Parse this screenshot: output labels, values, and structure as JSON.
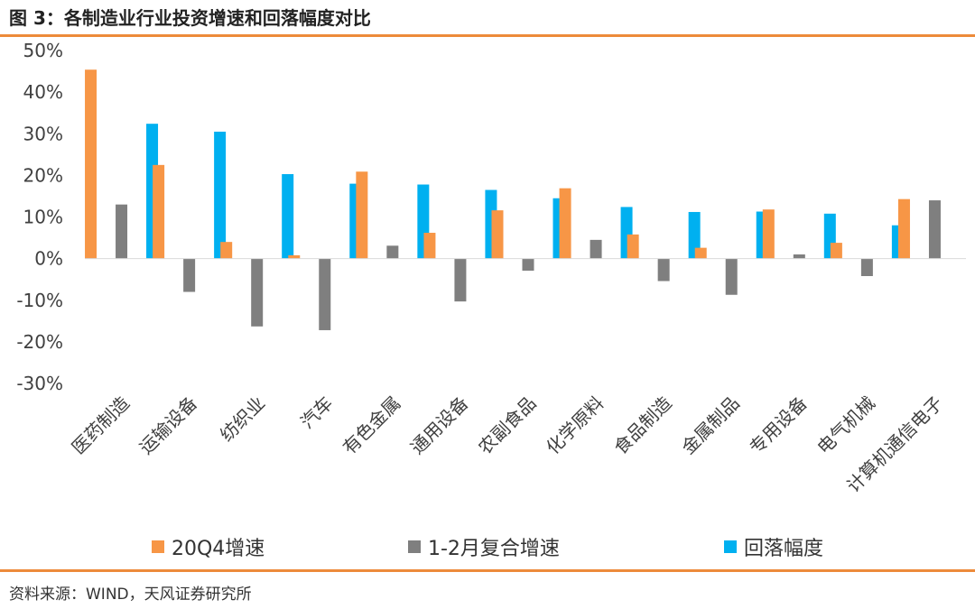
{
  "figure": {
    "title": "图 3：各制造业行业投资增速和回落幅度对比",
    "source": "资料来源：WIND，天风证券研究所"
  },
  "colors": {
    "accent_rule": "#ED8A3A",
    "series_orange": "#F79646",
    "series_gray": "#7F7F7F",
    "series_blue": "#00B0F0"
  },
  "chart_data": {
    "type": "bar",
    "categories": [
      "医药制造",
      "运输设备",
      "纺织业",
      "汽车",
      "有色金属",
      "通用设备",
      "农副食品",
      "化学原料",
      "食品制造",
      "金属制品",
      "专用设备",
      "电气机械",
      "计算机通信电子"
    ],
    "series": [
      {
        "name": "20Q4增速",
        "color": "#F79646",
        "values": [
          45.4,
          22.5,
          4.0,
          0.8,
          20.9,
          6.2,
          11.6,
          16.9,
          5.8,
          2.6,
          11.8,
          3.8,
          14.3
        ]
      },
      {
        "name": "1-2月复合增速",
        "color": "#7F7F7F",
        "values": [
          13.0,
          -8.0,
          -16.3,
          -17.2,
          3.1,
          -10.3,
          -2.9,
          4.5,
          -5.4,
          -8.7,
          1.0,
          -4.2,
          14.0
        ]
      },
      {
        "name": "回落幅度",
        "color": "#00B0F0",
        "values": [
          32.4,
          30.5,
          20.3,
          18.0,
          17.8,
          16.5,
          14.5,
          12.4,
          11.2,
          11.3,
          10.8,
          8.0,
          null
        ]
      }
    ],
    "ylim": [
      -30,
      50
    ],
    "yticks": [
      "-30%",
      "-20%",
      "-10%",
      "0%",
      "10%",
      "20%",
      "30%",
      "40%",
      "50%"
    ],
    "legend_position": "bottom",
    "grid": false
  }
}
